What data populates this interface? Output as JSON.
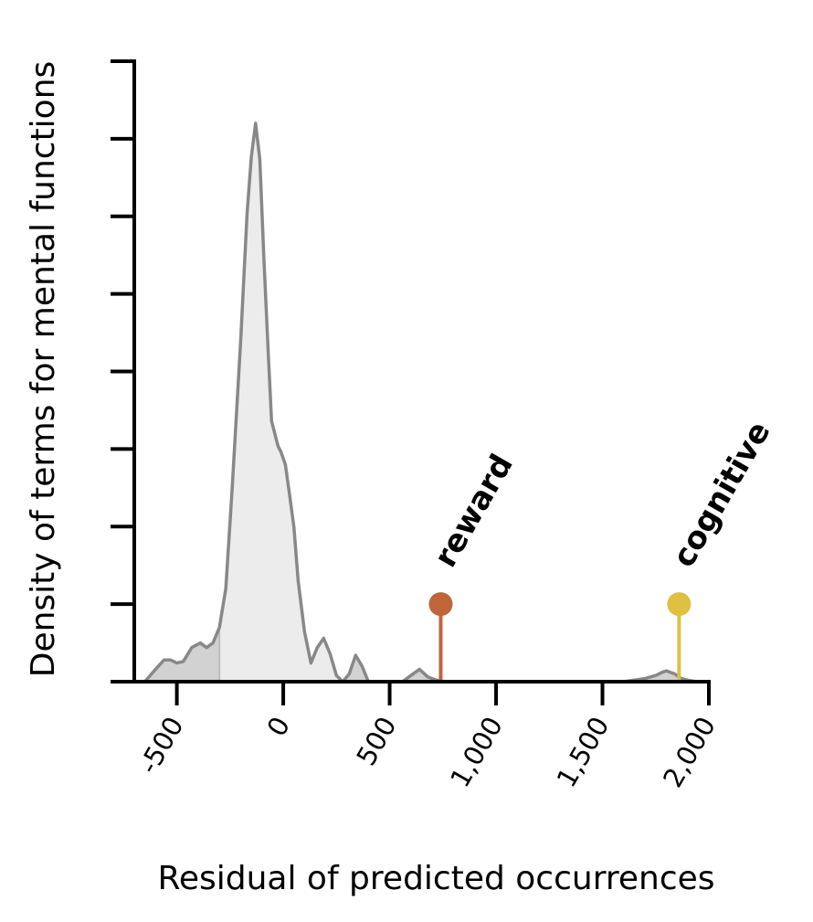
{
  "chart_data": {
    "type": "area",
    "xlabel": "Residual of predicted occurrences",
    "ylabel": "Density of terms for mental functions",
    "xlim": [
      -700,
      2000
    ],
    "ylim": [
      0,
      0.004
    ],
    "x_ticks": [
      -500,
      0,
      500,
      1000,
      1500,
      2000
    ],
    "x_tick_labels": [
      "-500",
      "0",
      "500",
      "1,000",
      "1,500",
      "2,000"
    ],
    "y_ticks": [
      0,
      0.0005,
      0.001,
      0.0015,
      0.002,
      0.0025,
      0.003,
      0.0035,
      0.004
    ],
    "y_tick_labels_shown": false,
    "grid": false,
    "density": {
      "x": [
        -700,
        -650,
        -600,
        -560,
        -530,
        -500,
        -470,
        -430,
        -390,
        -360,
        -330,
        -300,
        -270,
        -240,
        -200,
        -170,
        -150,
        -130,
        -110,
        -90,
        -70,
        -55,
        -40,
        -25,
        -10,
        10,
        30,
        50,
        70,
        100,
        130,
        160,
        190,
        220,
        250,
        280,
        310,
        340,
        370,
        400,
        430,
        460,
        490,
        520,
        560,
        600,
        640,
        680,
        700,
        720,
        760,
        800,
        850,
        900,
        1000,
        1200,
        1400,
        1600,
        1700,
        1750,
        1780,
        1800,
        1840,
        1870,
        1900,
        1940,
        1980,
        2000
      ],
      "y": [
        0,
        0,
        8e-05,
        0.00014,
        0.00014,
        0.00012,
        0.00013,
        0.00022,
        0.00025,
        0.00022,
        0.00025,
        0.00035,
        0.0006,
        0.00125,
        0.0022,
        0.00302,
        0.00338,
        0.0036,
        0.00337,
        0.0027,
        0.0021,
        0.00168,
        0.0016,
        0.00152,
        0.00148,
        0.0014,
        0.0012,
        0.001,
        0.00065,
        0.00032,
        0.00012,
        0.00022,
        0.00028,
        0.00018,
        4e-05,
        0,
        5e-05,
        0.00017,
        0.0001,
        0,
        0,
        0,
        0,
        0,
        0,
        4e-05,
        8e-05,
        3e-05,
        2e-05,
        1e-05,
        0,
        0,
        0,
        0,
        0,
        0,
        0,
        0,
        2e-05,
        4e-05,
        6e-05,
        7e-05,
        5e-05,
        2e-05,
        1e-05,
        0,
        0,
        0
      ]
    },
    "highlighted_region": [
      -300,
      290
    ],
    "markers": [
      {
        "label": "reward",
        "x": 740,
        "y": 0.0005,
        "color": "#c0643a"
      },
      {
        "label": "cognitive",
        "x": 1860,
        "y": 0.0005,
        "color": "#e0c040"
      }
    ],
    "colors": {
      "line": "#888888",
      "fill_center": "#ececec",
      "fill_tails": "#d2d2d2",
      "axis": "#000000"
    }
  }
}
